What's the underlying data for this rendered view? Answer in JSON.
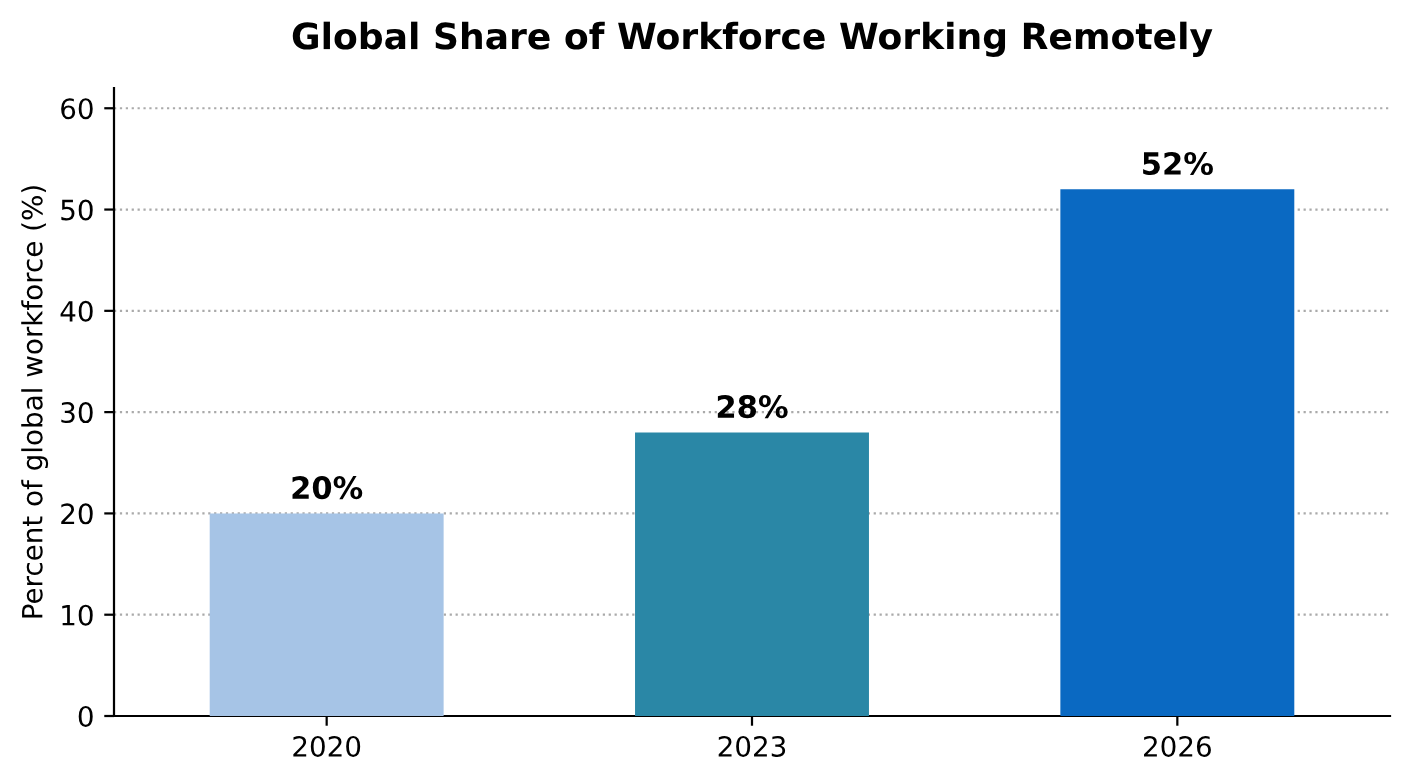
{
  "chart_data": {
    "type": "bar",
    "title": "Global Share of Workforce Working Remotely",
    "ylabel": "Percent of global workforce (%)",
    "categories": [
      "2020",
      "2023",
      "2026"
    ],
    "values": [
      20,
      28,
      52
    ],
    "colors": [
      "#a6c4e6",
      "#2a87a6",
      "#0a69c2"
    ],
    "value_labels": [
      "20%",
      "28%",
      "52%"
    ],
    "ylim": [
      0,
      62
    ],
    "yticks": [
      0,
      10,
      20,
      30,
      40,
      50,
      60
    ],
    "grid": "y"
  }
}
